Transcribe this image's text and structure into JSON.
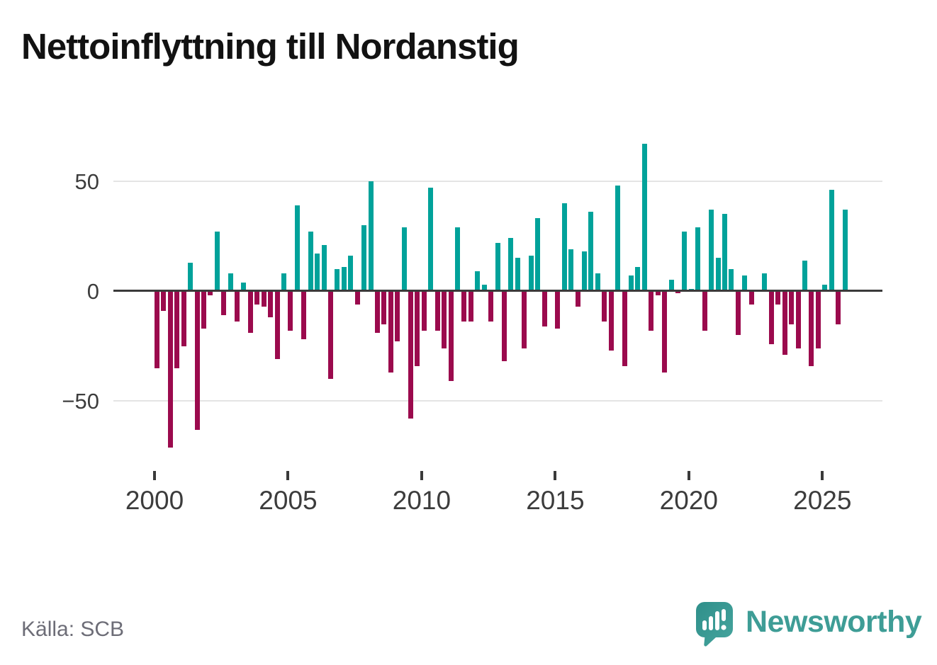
{
  "title": "Nettoinflyttning till Nordanstig",
  "source": "Källa: SCB",
  "logo": {
    "brand": "Newsworthy"
  },
  "y_axis": {
    "labels": [
      {
        "text": "50",
        "value": 50
      },
      {
        "text": "0",
        "value": 0
      },
      {
        "text": "−50",
        "value": -50
      }
    ]
  },
  "x_axis": {
    "ticks": [
      {
        "label": "2000",
        "year": 2000
      },
      {
        "label": "2005",
        "year": 2005
      },
      {
        "label": "2010",
        "year": 2010
      },
      {
        "label": "2015",
        "year": 2015
      },
      {
        "label": "2020",
        "year": 2020
      },
      {
        "label": "2025",
        "year": 2025
      }
    ]
  },
  "chart_data": {
    "type": "bar",
    "title": "Nettoinflyttning till Nordanstig",
    "period": "quarterly",
    "start_year": 2000,
    "quarters_per_year": 4,
    "ylim": [
      -75,
      72
    ],
    "grid_values": [
      50,
      -50
    ],
    "colors": {
      "positive": "#00a29a",
      "negative": "#9b0a4d"
    },
    "legend": "none",
    "values": [
      -35,
      -9,
      -71,
      -35,
      -25,
      13,
      -63,
      -17,
      -2,
      27,
      -11,
      8,
      -14,
      4,
      -19,
      -6,
      -7,
      -12,
      -31,
      8,
      -18,
      39,
      -22,
      27,
      17,
      21,
      -40,
      10,
      11,
      16,
      -6,
      30,
      50,
      -19,
      -15,
      -37,
      -23,
      29,
      -58,
      -34,
      -18,
      47,
      -18,
      -26,
      -41,
      29,
      -14,
      -14,
      9,
      3,
      -14,
      22,
      -32,
      24,
      15,
      -26,
      16,
      33,
      -16,
      0,
      -17,
      40,
      19,
      -7,
      18,
      36,
      8,
      -14,
      -27,
      48,
      -34,
      7,
      11,
      67,
      -18,
      -2,
      -37,
      5,
      -1,
      27,
      1,
      29,
      -18,
      37,
      15,
      35,
      10,
      -20,
      7,
      -6,
      0,
      8,
      -24,
      -6,
      -29,
      -15,
      -26,
      14,
      -34,
      -26,
      3,
      46,
      -15,
      37
    ]
  }
}
